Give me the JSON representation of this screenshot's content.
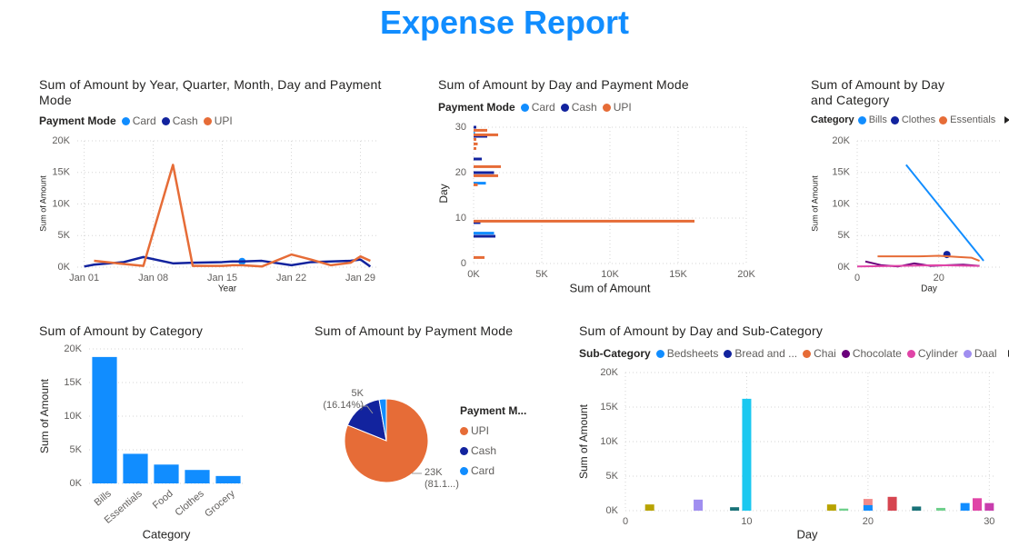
{
  "title": "Expense Report",
  "chart_data": [
    {
      "type": "line",
      "title": "Sum of Amount by Year, Quarter, Month, Day and Payment Mode",
      "legend_title": "Payment Mode",
      "x": [
        1,
        2,
        5,
        7,
        10,
        12,
        15,
        16,
        17,
        19,
        22,
        24,
        26,
        28,
        29,
        30
      ],
      "xlim": [
        0.3,
        30.7
      ],
      "xticks": [
        {
          "value": 1,
          "label": "Jan 01"
        },
        {
          "value": 8,
          "label": "Jan 08"
        },
        {
          "value": 15,
          "label": "Jan 15"
        },
        {
          "value": 22,
          "label": "Jan 22"
        },
        {
          "value": 29,
          "label": "Jan 29"
        }
      ],
      "ylim": [
        0,
        20000
      ],
      "yticks": [
        {
          "value": 0,
          "label": "0K"
        },
        {
          "value": 5000,
          "label": "5K"
        },
        {
          "value": 10000,
          "label": "10K"
        },
        {
          "value": 15000,
          "label": "15K"
        },
        {
          "value": 20000,
          "label": "20K"
        }
      ],
      "x_label": "Year",
      "y_label": "Sum of Amount",
      "grid": true,
      "series": [
        {
          "name": "Card",
          "color": "#118dff",
          "values": [
            null,
            null,
            null,
            null,
            null,
            null,
            null,
            null,
            900,
            null,
            null,
            null,
            null,
            null,
            null,
            null
          ]
        },
        {
          "name": "Cash",
          "color": "#12239e",
          "values": [
            100,
            400,
            800,
            1600,
            600,
            700,
            800,
            900,
            900,
            1000,
            300,
            800,
            900,
            1000,
            1200,
            100
          ]
        },
        {
          "name": "UPI",
          "color": "#e66c37",
          "values": [
            null,
            1000,
            500,
            200,
            16200,
            200,
            200,
            300,
            300,
            100,
            2000,
            1200,
            300,
            700,
            1700,
            1000
          ]
        }
      ]
    },
    {
      "type": "bar",
      "orientation": "horizontal",
      "title": "Sum of Amount by Day and Payment Mode",
      "legend_title": "Payment Mode",
      "y": [
        2,
        6,
        9,
        10,
        17,
        18,
        20,
        22,
        23,
        26,
        27,
        28,
        29,
        30
      ],
      "ylim": [
        0,
        30
      ],
      "yticks": [
        0,
        10,
        20,
        30
      ],
      "xlim": [
        0,
        20000
      ],
      "xticks": [
        {
          "value": 0,
          "label": "0K"
        },
        {
          "value": 5000,
          "label": "5K"
        },
        {
          "value": 10000,
          "label": "10K"
        },
        {
          "value": 15000,
          "label": "15K"
        },
        {
          "value": 20000,
          "label": "20K"
        }
      ],
      "x_label": "Sum of Amount",
      "y_label": "Day",
      "grid": true,
      "series": [
        {
          "name": "Card",
          "color": "#118dff",
          "values": [
            null,
            1500,
            null,
            null,
            900,
            null,
            null,
            null,
            null,
            null,
            null,
            100,
            null,
            null
          ]
        },
        {
          "name": "Cash",
          "color": "#12239e",
          "values": [
            null,
            1600,
            500,
            null,
            null,
            null,
            1500,
            null,
            600,
            null,
            null,
            1000,
            null,
            200
          ]
        },
        {
          "name": "UPI",
          "color": "#e66c37",
          "values": [
            800,
            null,
            null,
            16200,
            null,
            300,
            1800,
            2000,
            null,
            200,
            300,
            200,
            1800,
            1000
          ]
        }
      ]
    },
    {
      "type": "line",
      "title": "Sum of Amount by Day and Category",
      "legend_title": "Category",
      "xlim": [
        0,
        35
      ],
      "xticks": [
        0,
        20
      ],
      "ylim": [
        0,
        20000
      ],
      "yticks": [
        {
          "value": 0,
          "label": "0K"
        },
        {
          "value": 5000,
          "label": "5K"
        },
        {
          "value": 10000,
          "label": "10K"
        },
        {
          "value": 15000,
          "label": "15K"
        },
        {
          "value": 20000,
          "label": "20K"
        }
      ],
      "x_label": "Day",
      "y_label": "Sum of Amount",
      "grid": true,
      "series": [
        {
          "color": "#6b007b",
          "x": [
            2,
            6,
            10,
            14,
            18,
            22,
            26,
            30
          ],
          "values": [
            900,
            300,
            100,
            600,
            200,
            300,
            400,
            200
          ]
        },
        {
          "color": "#e044a7",
          "x": [
            0,
            10,
            20,
            30
          ],
          "values": [
            100,
            200,
            300,
            200
          ]
        },
        {
          "name": "Bills",
          "color": "#118dff",
          "x": [
            12,
            31
          ],
          "values": [
            16200,
            1000
          ]
        },
        {
          "name": "Clothes",
          "color": "#12239e",
          "x": [
            22
          ],
          "values": [
            2000
          ]
        },
        {
          "name": "Essentials",
          "color": "#e66c37",
          "x": [
            5,
            10,
            15,
            20,
            25,
            28,
            30
          ],
          "values": [
            1700,
            1700,
            1700,
            1800,
            1600,
            1500,
            1000
          ]
        }
      ]
    },
    {
      "type": "bar",
      "title": "Sum of Amount by Category",
      "categories": [
        "Bills",
        "Essentials",
        "Food",
        "Clothes",
        "Grocery"
      ],
      "values": [
        18800,
        4400,
        2800,
        2000,
        1100
      ],
      "color": "#118dff",
      "ylim": [
        0,
        20000
      ],
      "yticks": [
        {
          "value": 0,
          "label": "0K"
        },
        {
          "value": 5000,
          "label": "5K"
        },
        {
          "value": 10000,
          "label": "10K"
        },
        {
          "value": 15000,
          "label": "15K"
        },
        {
          "value": 20000,
          "label": "20K"
        }
      ],
      "x_label": "Category",
      "y_label": "Sum of Amount",
      "grid": true
    },
    {
      "type": "pie",
      "title": "Sum of Amount by Payment Mode",
      "legend_title": "Payment M...",
      "categories": [
        "UPI",
        "Cash",
        "Card"
      ],
      "values": [
        23000,
        4577,
        783
      ],
      "value_labels": [
        "23K (81.1...)",
        "5K (16.14%)",
        null
      ],
      "colors": [
        "#e66c37",
        "#12239e",
        "#118dff"
      ]
    },
    {
      "type": "bar",
      "title": "Sum of Amount by Day and Sub-Category",
      "legend_title": "Sub-Category",
      "xlim": [
        0,
        30.5
      ],
      "xticks": [
        0,
        10,
        20,
        30
      ],
      "ylim": [
        0,
        20000
      ],
      "yticks": [
        {
          "value": 0,
          "label": "0K"
        },
        {
          "value": 5000,
          "label": "5K"
        },
        {
          "value": 10000,
          "label": "10K"
        },
        {
          "value": 15000,
          "label": "15K"
        },
        {
          "value": 20000,
          "label": "20K"
        }
      ],
      "x_label": "Day",
      "y_label": "Sum of Amount",
      "grid": true,
      "series": [
        {
          "color": "#b8a300",
          "x": [
            2,
            17
          ],
          "values": [
            900,
            900
          ]
        },
        {
          "color": "#1ac8f0",
          "x": [
            10
          ],
          "values": [
            16200
          ]
        },
        {
          "color": "#197278",
          "x": [
            9,
            24
          ],
          "values": [
            500,
            600
          ]
        },
        {
          "color": "#6fd08c",
          "x": [
            18,
            26
          ],
          "values": [
            300,
            400
          ]
        },
        {
          "color": "#f28a8a",
          "x": [
            20
          ],
          "values": [
            1700
          ]
        },
        {
          "color": "#d64550",
          "x": [
            22
          ],
          "values": [
            2000
          ]
        },
        {
          "color": "#c83dad",
          "x": [
            30
          ],
          "values": [
            1100
          ]
        },
        {
          "name": "Bedsheets",
          "color": "#118dff",
          "x": [
            20,
            28
          ],
          "values": [
            800,
            1100
          ]
        },
        {
          "name": "Bread and ...",
          "color": "#12239e",
          "x": [],
          "values": []
        },
        {
          "name": "Chai",
          "color": "#e66c37",
          "x": [],
          "values": []
        },
        {
          "name": "Chocolate",
          "color": "#6b007b",
          "x": [],
          "values": []
        },
        {
          "name": "Cylinder",
          "color": "#e044a7",
          "x": [
            29
          ],
          "values": [
            1800
          ]
        },
        {
          "name": "Daal",
          "color": "#a08ef0",
          "x": [
            6
          ],
          "values": [
            1600
          ]
        }
      ]
    }
  ]
}
